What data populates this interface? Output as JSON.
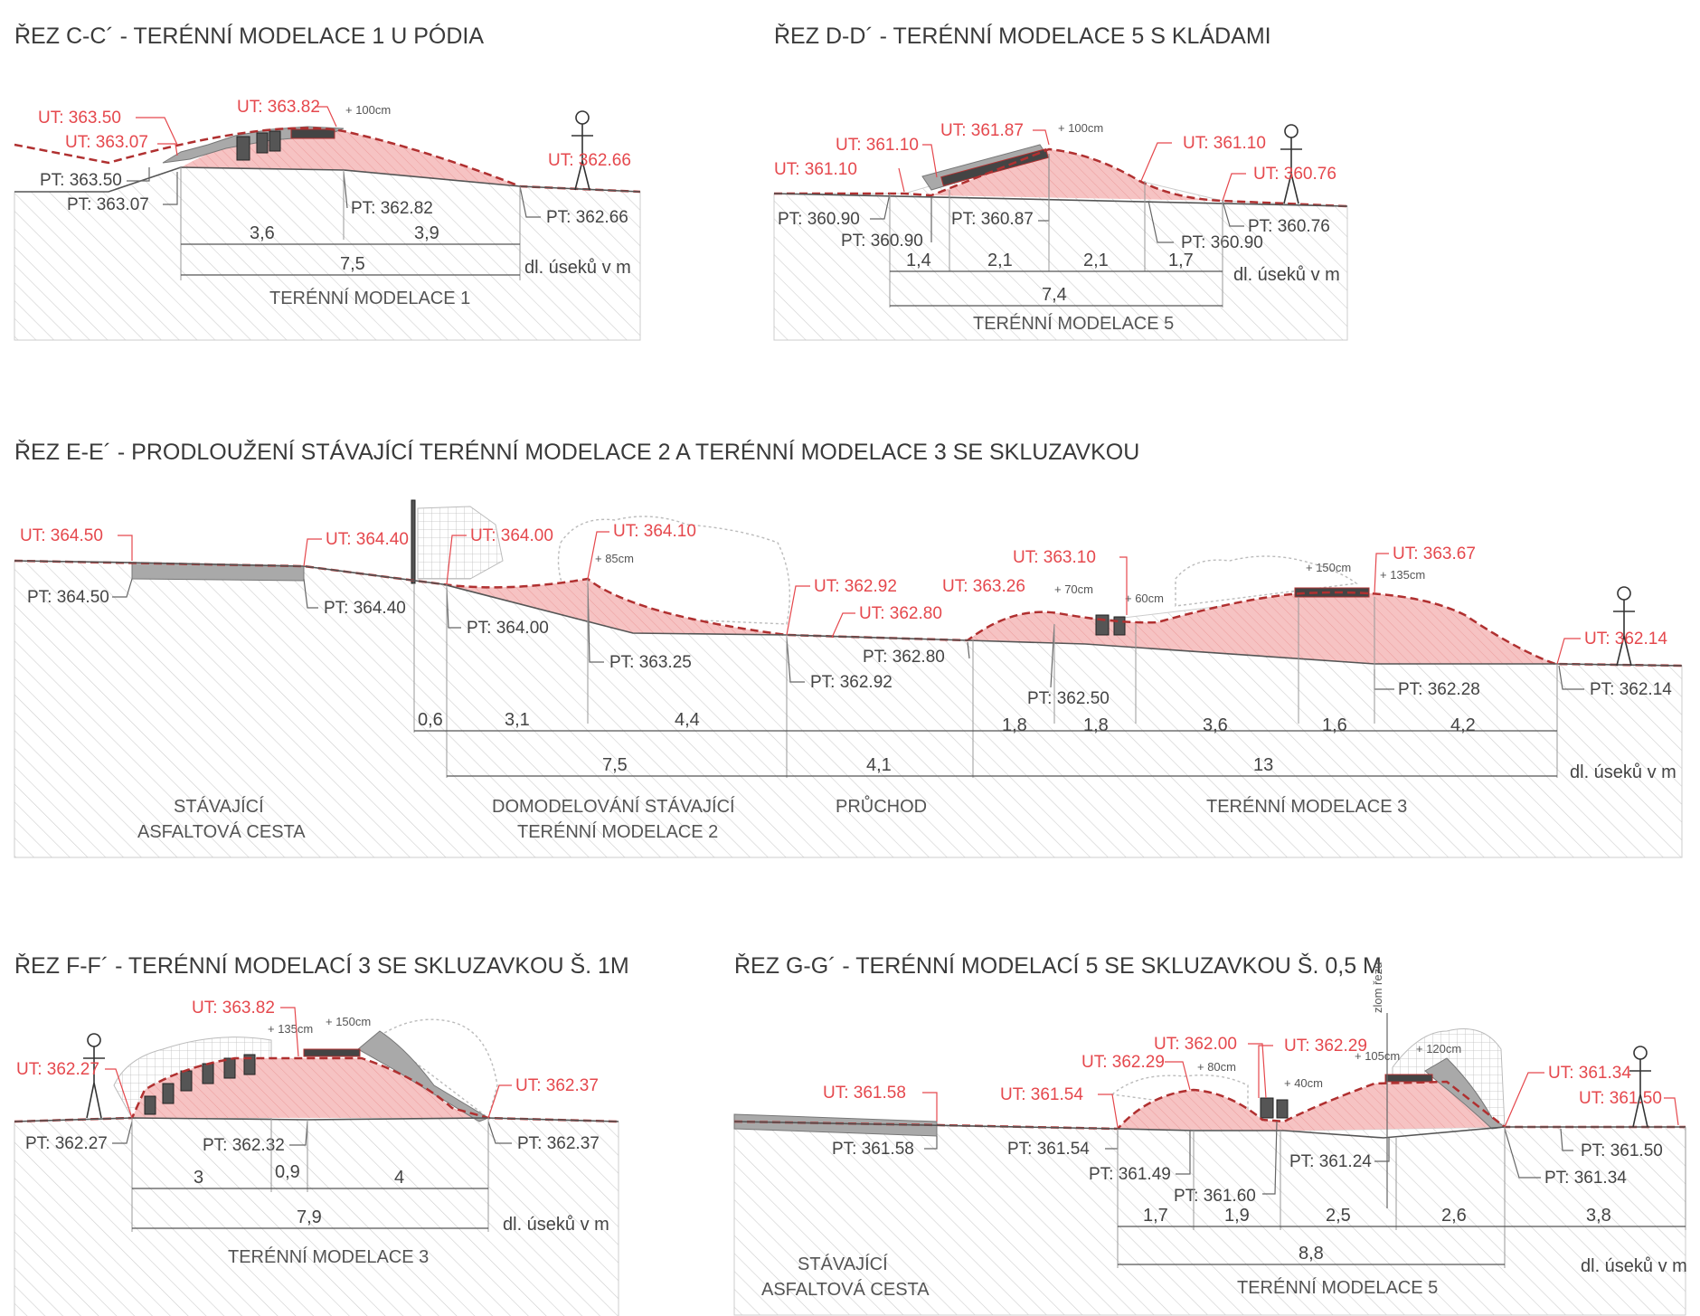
{
  "sections": [
    {
      "id": "cc",
      "title": "ŘEZ C-C´ - TERÉNNÍ MODELACE 1 U PÓDIA",
      "ut_labels": [
        "UT: 363.50",
        "UT: 363.07",
        "UT: 363.82",
        "UT: 362.66"
      ],
      "pt_labels": [
        "PT: 363.50",
        "PT: 363.07",
        "PT: 362.82",
        "PT: 362.66"
      ],
      "offsets": [
        "+ 100cm"
      ],
      "dims_top": [
        "3,6",
        "3,9"
      ],
      "dims_total": [
        "7,5"
      ],
      "unit_label": "dl. úseků v m",
      "zones": [
        "TERÉNNÍ MODELACE 1"
      ]
    },
    {
      "id": "dd",
      "title": "ŘEZ D-D´ - TERÉNNÍ MODELACE 5 S KLÁDAMI",
      "ut_labels": [
        "UT: 361.10",
        "UT: 361.87",
        "UT: 361.10",
        "UT: 361.10",
        "UT: 360.76"
      ],
      "pt_labels": [
        "PT: 360.90",
        "PT: 360.90",
        "PT: 360.87",
        "PT: 360.90",
        "PT: 360.76"
      ],
      "offsets": [
        "+ 100cm"
      ],
      "dims_top": [
        "1,4",
        "2,1",
        "2,1",
        "1,7"
      ],
      "dims_total": [
        "7,4"
      ],
      "unit_label": "dl. úseků v m",
      "zones": [
        "TERÉNNÍ MODELACE 5"
      ]
    },
    {
      "id": "ee",
      "title": "ŘEZ E-E´ - PRODLOUŽENÍ STÁVAJÍCÍ TERÉNNÍ MODELACE 2 A TERÉNNÍ MODELACE 3 SE SKLUZAVKOU",
      "ut_labels": [
        "UT: 364.50",
        "UT: 364.40",
        "UT: 364.00",
        "UT: 364.10",
        "UT: 362.92",
        "UT: 362.80",
        "UT: 363.26",
        "UT: 363.10",
        "UT: 363.67",
        "UT: 362.14"
      ],
      "pt_labels": [
        "PT: 364.50",
        "PT: 364.40",
        "PT: 364.00",
        "PT: 363.25",
        "PT: 362.92",
        "PT: 362.80",
        "PT: 362.50",
        "PT: 362.28",
        "PT: 362.14"
      ],
      "offsets": [
        "+ 85cm",
        "+ 70cm",
        "+ 60cm",
        "+ 150cm",
        "+ 135cm"
      ],
      "dims_top": [
        "0,6",
        "3,1",
        "4,4",
        "1,8",
        "1,8",
        "3,6",
        "1,6",
        "4,2"
      ],
      "dims_total": [
        "7,5",
        "4,1",
        "13"
      ],
      "unit_label": "dl. úseků v m",
      "zones": [
        "STÁVAJÍCÍ",
        "ASFALTOVÁ CESTA",
        "DOMODELOVÁNÍ STÁVAJÍCÍ",
        "TERÉNNÍ MODELACE 2",
        "PRŮCHOD",
        "TERÉNNÍ MODELACE 3"
      ]
    },
    {
      "id": "ff",
      "title": "ŘEZ F-F´ - TERÉNNÍ MODELACÍ 3 SE SKLUZAVKOU Š. 1M",
      "ut_labels": [
        "UT: 363.82",
        "UT: 362.27",
        "UT: 362.37"
      ],
      "pt_labels": [
        "PT: 362.27",
        "PT: 362.32",
        "PT: 362.37"
      ],
      "offsets": [
        "+ 135cm",
        "+ 150cm"
      ],
      "dims_top": [
        "3",
        "0,9",
        "4"
      ],
      "dims_total": [
        "7,9"
      ],
      "unit_label": "dl. úseků v m",
      "zones": [
        "TERÉNNÍ MODELACE 3"
      ]
    },
    {
      "id": "gg",
      "title": "ŘEZ G-G´ - TERÉNNÍ MODELACÍ 5 SE SKLUZAVKOU Š. 0,5 M",
      "ut_labels": [
        "UT: 361.58",
        "UT: 361.54",
        "UT: 362.29",
        "UT: 362.00",
        "UT: 362.29",
        "UT: 361.34",
        "UT: 361.50"
      ],
      "pt_labels": [
        "PT: 361.58",
        "PT: 361.54",
        "PT: 361.49",
        "PT: 361.60",
        "PT: 361.24",
        "PT: 361.50",
        "PT: 361.34"
      ],
      "offsets": [
        "+ 80cm",
        "+ 40cm",
        "+ 105cm",
        "+ 120cm"
      ],
      "dims_top": [
        "1,7",
        "1,9",
        "2,5",
        "2,6",
        "3,8"
      ],
      "dims_total": [
        "8,8"
      ],
      "unit_label": "dl. úseků v m",
      "break_label": "zlom řezu",
      "zones": [
        "STÁVAJÍCÍ",
        "ASFALTOVÁ CESTA",
        "TERÉNNÍ MODELACE 5"
      ]
    }
  ],
  "colors": {
    "ut": "#e5484d",
    "pt": "#444444",
    "mound": "#f4bcbc",
    "new_terrain_line": "#b03030",
    "hatch": "#d0d0d0"
  }
}
